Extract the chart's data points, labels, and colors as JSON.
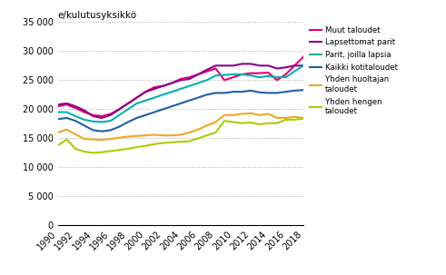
{
  "years": [
    1990,
    1991,
    1992,
    1993,
    1994,
    1995,
    1996,
    1997,
    1998,
    1999,
    2000,
    2001,
    2002,
    2003,
    2004,
    2005,
    2006,
    2007,
    2008,
    2009,
    2010,
    2011,
    2012,
    2013,
    2014,
    2015,
    2016,
    2017,
    2018
  ],
  "series": {
    "Muut taloudet": [
      20500,
      20800,
      20200,
      19500,
      19000,
      18800,
      19200,
      20000,
      21000,
      22000,
      23000,
      23800,
      24000,
      24500,
      25200,
      25500,
      26000,
      26500,
      27000,
      25000,
      25500,
      26000,
      26200,
      26200,
      26300,
      25000,
      26000,
      27500,
      29000
    ],
    "Lapsettomat parit": [
      20800,
      21000,
      20500,
      19800,
      18800,
      18500,
      19000,
      20000,
      21000,
      22000,
      23000,
      23500,
      24000,
      24500,
      25000,
      25200,
      26000,
      26800,
      27500,
      27500,
      27500,
      27800,
      27800,
      27500,
      27500,
      27000,
      27200,
      27500,
      27500
    ],
    "Parit, joilla lapsia": [
      19500,
      19500,
      18800,
      18200,
      17900,
      17800,
      18000,
      19000,
      20000,
      21000,
      21500,
      22000,
      22500,
      23000,
      23500,
      24000,
      24500,
      25000,
      25800,
      25900,
      26000,
      26000,
      25800,
      25500,
      25700,
      25500,
      25500,
      26500,
      27500
    ],
    "Kaikki kotitaloudet": [
      18300,
      18500,
      18000,
      17200,
      16400,
      16200,
      16400,
      17000,
      17800,
      18500,
      19000,
      19500,
      20000,
      20500,
      21000,
      21500,
      22000,
      22500,
      22800,
      22800,
      23000,
      23000,
      23200,
      22900,
      22800,
      22800,
      23000,
      23200,
      23300
    ],
    "Yhden huoltajan taloudet": [
      16000,
      16500,
      15700,
      14900,
      14800,
      14700,
      14900,
      15100,
      15300,
      15400,
      15500,
      15600,
      15500,
      15500,
      15600,
      16000,
      16500,
      17200,
      17800,
      19000,
      19000,
      19200,
      19300,
      19000,
      19200,
      18500,
      18500,
      18700,
      18500
    ],
    "Yhden hengen taloudet": [
      13800,
      14800,
      13200,
      12700,
      12500,
      12600,
      12800,
      13000,
      13200,
      13500,
      13700,
      14000,
      14200,
      14300,
      14400,
      14500,
      15000,
      15500,
      16000,
      18000,
      17800,
      17600,
      17700,
      17400,
      17600,
      17600,
      18200,
      18200,
      18400
    ]
  },
  "colors": {
    "Muut taloudet": "#e8006e",
    "Lapsettomat parit": "#8b008b",
    "Parit, joilla lapsia": "#00b0b0",
    "Kaikki kotitaloudet": "#1f5fa6",
    "Yhden huoltajan taloudet": "#f5a623",
    "Yhden hengen taloudet": "#aacc00"
  },
  "ylabel": "e/kulutusyksikkö",
  "ylim": [
    0,
    35000
  ],
  "yticks": [
    0,
    5000,
    10000,
    15000,
    20000,
    25000,
    30000,
    35000
  ],
  "ytick_labels": [
    "0",
    "5 000",
    "10 000",
    "15 000",
    "20 000",
    "25 000",
    "30 000",
    "35 000"
  ],
  "xticks": [
    1990,
    1992,
    1994,
    1996,
    1998,
    2000,
    2002,
    2004,
    2006,
    2008,
    2010,
    2012,
    2014,
    2016,
    2018
  ],
  "legend_order": [
    "Muut taloudet",
    "Lapsettomat parit",
    "Parit, joilla lapsia",
    "Kaikki kotitaloudet",
    "Yhden huoltajan\ntaloudet",
    "Yhden hengen\ntaloudet"
  ],
  "legend_keys": [
    "Muut taloudet",
    "Lapsettomat parit",
    "Parit, joilla lapsia",
    "Kaikki kotitaloudet",
    "Yhden huoltajan taloudet",
    "Yhden hengen taloudet"
  ],
  "line_width": 1.5
}
